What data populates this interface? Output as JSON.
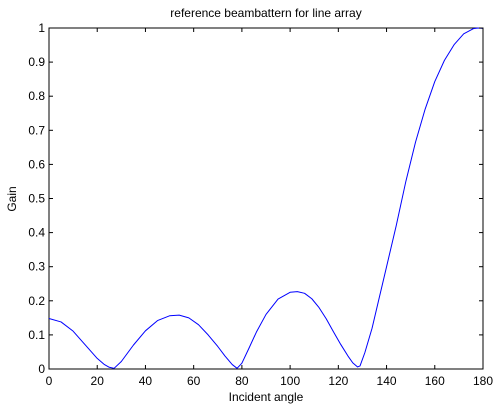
{
  "chart_data": {
    "type": "line",
    "title": "reference beambattern for line array",
    "xlabel": "Incident angle",
    "ylabel": "Gain",
    "xlim": [
      0,
      180
    ],
    "ylim": [
      0,
      1
    ],
    "xticks": [
      0,
      20,
      40,
      60,
      80,
      100,
      120,
      140,
      160,
      180
    ],
    "yticks": [
      0,
      0.1,
      0.2,
      0.3,
      0.4,
      0.5,
      0.6,
      0.7,
      0.8,
      0.9,
      1
    ],
    "grid": false,
    "legend": "none",
    "series": [
      {
        "color": "#0000ff",
        "x": [
          0,
          5,
          10,
          15,
          20,
          23,
          25,
          27,
          30,
          35,
          40,
          45,
          50,
          54,
          58,
          62,
          66,
          70,
          73,
          76,
          78,
          80,
          83,
          86,
          90,
          95,
          100,
          103,
          106,
          109,
          112,
          115,
          118,
          121,
          124,
          126,
          128,
          129,
          131,
          134,
          137,
          140,
          144,
          148,
          152,
          156,
          160,
          164,
          168,
          172,
          176,
          178,
          180
        ],
        "y": [
          0.148,
          0.138,
          0.111,
          0.071,
          0.031,
          0.013,
          0.005,
          0.002,
          0.022,
          0.07,
          0.112,
          0.142,
          0.156,
          0.158,
          0.15,
          0.13,
          0.1,
          0.066,
          0.038,
          0.013,
          0.002,
          0.017,
          0.062,
          0.108,
          0.16,
          0.205,
          0.225,
          0.227,
          0.222,
          0.206,
          0.18,
          0.147,
          0.109,
          0.072,
          0.038,
          0.018,
          0.006,
          0.009,
          0.048,
          0.12,
          0.21,
          0.3,
          0.42,
          0.55,
          0.665,
          0.762,
          0.843,
          0.905,
          0.951,
          0.983,
          0.998,
          1.0,
          0.999
        ]
      }
    ]
  }
}
